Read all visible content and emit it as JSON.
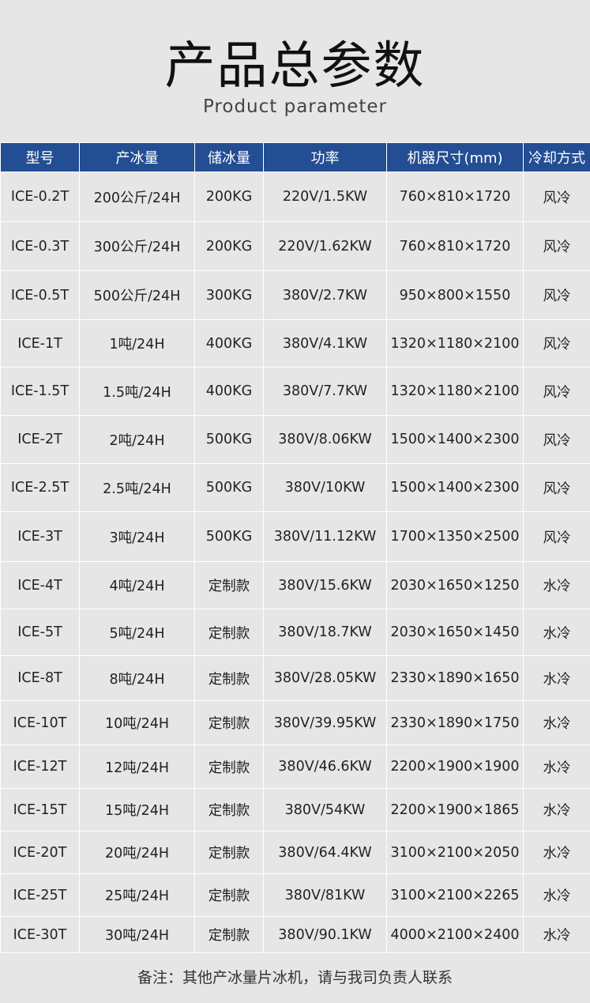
{
  "title": "产品总参数",
  "subtitle": "Product  parameter",
  "table": {
    "headers": [
      "型号",
      "产冰量",
      "储冰量",
      "功率",
      "机器尺寸(mm)",
      "冷却方式"
    ],
    "rows": [
      [
        "ICE-0.2T",
        "200公斤/24H",
        "200KG",
        "220V/1.5KW",
        "760×810×1720",
        "风冷"
      ],
      [
        "ICE-0.3T",
        "300公斤/24H",
        "200KG",
        "220V/1.62KW",
        "760×810×1720",
        "风冷"
      ],
      [
        "ICE-0.5T",
        "500公斤/24H",
        "300KG",
        "380V/2.7KW",
        "950×800×1550",
        "风冷"
      ],
      [
        "ICE-1T",
        "1吨/24H",
        "400KG",
        "380V/4.1KW",
        "1320×1180×2100",
        "风冷"
      ],
      [
        "ICE-1.5T",
        "1.5吨/24H",
        "400KG",
        "380V/7.7KW",
        "1320×1180×2100",
        "风冷"
      ],
      [
        "ICE-2T",
        "2吨/24H",
        "500KG",
        "380V/8.06KW",
        "1500×1400×2300",
        "风冷"
      ],
      [
        "ICE-2.5T",
        "2.5吨/24H",
        "500KG",
        "380V/10KW",
        "1500×1400×2300",
        "风冷"
      ],
      [
        "ICE-3T",
        "3吨/24H",
        "500KG",
        "380V/11.12KW",
        "1700×1350×2500",
        "风冷"
      ],
      [
        "ICE-4T",
        "4吨/24H",
        "定制款",
        "380V/15.6KW",
        "2030×1650×1250",
        "水冷"
      ],
      [
        "ICE-5T",
        "5吨/24H",
        "定制款",
        "380V/18.7KW",
        "2030×1650×1450",
        "水冷"
      ],
      [
        "ICE-8T",
        "8吨/24H",
        "定制款",
        "380V/28.05KW",
        "2330×1890×1650",
        "水冷"
      ],
      [
        "ICE-10T",
        "10吨/24H",
        "定制款",
        "380V/39.95KW",
        "2330×1890×1750",
        "水冷"
      ],
      [
        "ICE-12T",
        "12吨/24H",
        "定制款",
        "380V/46.6KW",
        "2200×1900×1900",
        "水冷"
      ],
      [
        "ICE-15T",
        "15吨/24H",
        "定制款",
        "380V/54KW",
        "2200×1900×1865",
        "水冷"
      ],
      [
        "ICE-20T",
        "20吨/24H",
        "定制款",
        "380V/64.4KW",
        "3100×2100×2050",
        "水冷"
      ],
      [
        "ICE-25T",
        "25吨/24H",
        "定制款",
        "380V/81KW",
        "3100×2100×2265",
        "水冷"
      ],
      [
        "ICE-30T",
        "30吨/24H",
        "定制款",
        "380V/90.1KW",
        "4000×2100×2400",
        "水冷"
      ]
    ]
  },
  "note": "备注：其他产冰量片冰机，请与我司负责人联系",
  "colors": {
    "header_bg": "#234e93",
    "background": "#e6e6e6"
  }
}
